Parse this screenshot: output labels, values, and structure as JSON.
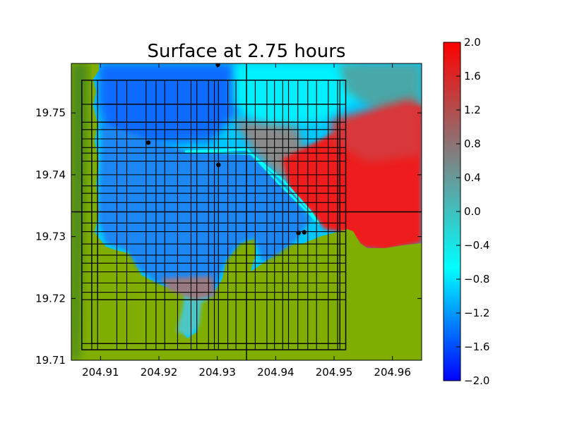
{
  "chart_data": {
    "type": "heatmap",
    "title": "Surface at 2.75 hours",
    "xlabel": "",
    "ylabel": "",
    "xlim": [
      204.905,
      204.965
    ],
    "ylim": [
      19.71,
      19.758
    ],
    "x_ticks": [
      204.91,
      204.92,
      204.93,
      204.94,
      204.95,
      204.96
    ],
    "x_tick_labels": [
      "204.91",
      "204.92",
      "204.93",
      "204.94",
      "204.95",
      "204.96"
    ],
    "y_ticks": [
      19.71,
      19.72,
      19.73,
      19.74,
      19.75
    ],
    "y_tick_labels": [
      "19.71",
      "19.72",
      "19.73",
      "19.74",
      "19.75"
    ],
    "colorbar": {
      "vmin": -2.0,
      "vmax": 2.0,
      "ticks": [
        2.0,
        1.6,
        1.2,
        0.8,
        0.4,
        0.0,
        -0.4,
        -0.8,
        -1.2,
        -1.6,
        -2.0
      ],
      "tick_labels": [
        "2.0",
        "1.6",
        "1.2",
        "0.8",
        "0.4",
        "0.0",
        "−0.4",
        "−0.8",
        "−1.2",
        "−1.6",
        "−2.0"
      ],
      "colormap": [
        "#0000ff",
        "#00ffff",
        "#808080",
        "#ff0000"
      ]
    },
    "colors": {
      "land": "#7fae00",
      "land_dark": "#4c8a1e",
      "grid": "#000000",
      "gauge": "#000000"
    },
    "gauges": [
      {
        "x": 204.9301,
        "y": 19.7578
      },
      {
        "x": 204.9182,
        "y": 19.7452
      },
      {
        "x": 204.9302,
        "y": 19.7416
      },
      {
        "x": 204.9439,
        "y": 19.7306
      },
      {
        "x": 204.9449,
        "y": 19.7307
      }
    ],
    "amr_patches": [
      {
        "x0": 204.9068,
        "x1": 204.952,
        "y0": 19.7117,
        "y1": 19.7553
      },
      {
        "x0": 204.9085,
        "x1": 204.951,
        "y0": 19.7127,
        "y1": 19.7514
      },
      {
        "x0": 204.9095,
        "x1": 204.9506,
        "y0": 19.7198,
        "y1": 19.7485
      }
    ],
    "amr_vertical_lines": [
      204.9068,
      204.9085,
      204.9095,
      204.9128,
      204.9145,
      204.9178,
      204.9195,
      204.921,
      204.9232,
      204.9255,
      204.9265,
      204.9285,
      204.9295,
      204.9302,
      204.9318,
      204.9332,
      204.935,
      204.9365,
      204.9385,
      204.9398,
      204.9412,
      204.9422,
      204.9438,
      204.9455,
      204.947,
      204.949,
      204.9506,
      204.951,
      204.952
    ],
    "amr_horizontal_lines": [
      19.7117,
      19.7127,
      19.7198,
      19.721,
      19.7225,
      19.7243,
      19.7257,
      19.727,
      19.7288,
      19.7308,
      19.7322,
      19.734,
      19.7355,
      19.737,
      19.7382,
      19.74,
      19.7422,
      19.7435,
      19.7444,
      19.7458,
      19.7473,
      19.7485,
      19.7514,
      19.7553
    ],
    "bold_lines": {
      "x": 204.935,
      "y": 19.734
    }
  }
}
